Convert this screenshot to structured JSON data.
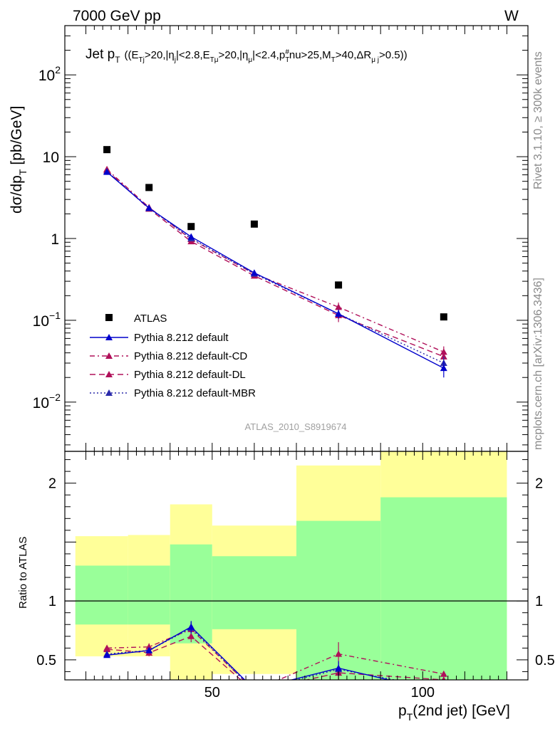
{
  "header": {
    "left": "7000 GeV pp",
    "right": "W"
  },
  "side_text": {
    "rivet": "Rivet 3.1.10, ≥ 300k events",
    "mcplots": "mcplots.cern.ch [arXiv:1306.3436]"
  },
  "analysis_id": "ATLAS_2010_S8919674",
  "chart_data": {
    "type": "line",
    "title": "Jet p_T ((E_Tj>20,|η_j|<2.8,E_Tμ>20,|η_μ|<2.4,p_T^#nu>25,M_T>40,ΔR_μj>0.5))",
    "title_parts": {
      "a": "Jet p",
      "b": "((E",
      "c": ">20,|η",
      "d": "|<2.8,E",
      "e": ">20,|η",
      "f": "|<2.4,p",
      "g": "nu>25,M",
      "h": ">40,ΔR",
      "i": ">0.5))"
    },
    "title_sub": {
      "T": "T",
      "Tj": "Tj",
      "j": "j",
      "Tmu": "Tμ",
      "mu": "μ",
      "hash": "#",
      "muj": "μ j"
    },
    "ylabel_main": "dσ/dp_T [pb/GeV]",
    "ylabel_parts": {
      "a": "dσ/dp",
      "b": "[pb/GeV]",
      "sub": "T"
    },
    "ylabel_ratio": "Ratio to ATLAS",
    "xlabel": "p_T(2nd jet) [GeV]",
    "xlabel_parts": {
      "a": "p",
      "sub": "T",
      "b": "(2nd jet) [GeV]"
    },
    "main_y_scale": "log",
    "main_ylim": [
      0.0025,
      400
    ],
    "main_yticks": [
      {
        "value": 100,
        "base": "10",
        "exp": "2"
      },
      {
        "value": 10,
        "base": "10",
        "exp": ""
      },
      {
        "value": 1,
        "base": "1",
        "exp": ""
      },
      {
        "value": 0.1,
        "base": "10",
        "exp": "−1"
      },
      {
        "value": 0.01,
        "base": "10",
        "exp": "−2"
      }
    ],
    "ratio_ylim": [
      0.33,
      2.27
    ],
    "ratio_yticks": [
      {
        "value": 0.5,
        "label": "0.5"
      },
      {
        "value": 1,
        "label": "1"
      },
      {
        "value": 2,
        "label": "2"
      }
    ],
    "xlim": [
      15,
      125
    ],
    "xticks": [
      {
        "value": 50,
        "label": "50"
      },
      {
        "value": 100,
        "label": "100"
      }
    ],
    "data": {
      "name": "ATLAS",
      "x": [
        25,
        35,
        45,
        60,
        80,
        105
      ],
      "y": [
        12.2,
        4.2,
        1.4,
        1.5,
        0.27,
        0.11
      ]
    },
    "bins": [
      {
        "lo": 17.5,
        "hi": 30,
        "inner_lo": 0.8,
        "inner_hi": 1.3,
        "outer_lo": 0.53,
        "outer_hi": 1.55
      },
      {
        "lo": 30,
        "hi": 40,
        "inner_lo": 0.8,
        "inner_hi": 1.3,
        "outer_lo": 0.53,
        "outer_hi": 1.56
      },
      {
        "lo": 40,
        "hi": 50,
        "inner_lo": 0.64,
        "inner_hi": 1.48,
        "outer_lo": 0.33,
        "outer_hi": 1.82
      },
      {
        "lo": 50,
        "hi": 70,
        "inner_lo": 0.76,
        "inner_hi": 1.38,
        "outer_lo": 0.38,
        "outer_hi": 1.64
      },
      {
        "lo": 70,
        "hi": 90,
        "inner_lo": 0.33,
        "inner_hi": 1.68,
        "outer_lo": 0.33,
        "outer_hi": 2.15
      },
      {
        "lo": 90,
        "hi": 120,
        "inner_lo": 0.33,
        "inner_hi": 1.88,
        "outer_lo": 0.33,
        "outer_hi": 2.27
      }
    ],
    "series": [
      {
        "name": "Pythia 8.212 default",
        "color": "#0000cc",
        "dash": "",
        "x": [
          25,
          35,
          45,
          60,
          80,
          105
        ],
        "y": [
          6.5,
          2.35,
          1.05,
          0.38,
          0.12,
          0.026
        ],
        "yerr": [
          0.2,
          0.1,
          0.05,
          0.02,
          0.015,
          0.006
        ],
        "ratio": [
          0.54,
          0.58,
          0.78,
          0.25,
          0.43,
          0.22
        ],
        "ratio_err": [
          0.015,
          0.02,
          0.05,
          0.0,
          0.06,
          0.0
        ]
      },
      {
        "name": "Pythia 8.212 default-CD",
        "color": "#b0105a",
        "dash": "7,4,2,4",
        "x": [
          25,
          35,
          45,
          60,
          80,
          105
        ],
        "y": [
          7.0,
          2.4,
          0.98,
          0.37,
          0.145,
          0.041
        ],
        "yerr": [
          0.2,
          0.1,
          0.05,
          0.02,
          0.02,
          0.007
        ],
        "ratio": [
          0.6,
          0.61,
          0.76,
          0.24,
          0.55,
          0.38
        ],
        "ratio_err": [
          0.02,
          0.03,
          0.05,
          0.0,
          0.1,
          0.0
        ]
      },
      {
        "name": "Pythia 8.212 default-DL",
        "color": "#b0105a",
        "dash": "8,5",
        "x": [
          25,
          35,
          45,
          60,
          80,
          105
        ],
        "y": [
          6.8,
          2.3,
          0.92,
          0.35,
          0.115,
          0.036
        ],
        "yerr": [
          0.2,
          0.1,
          0.05,
          0.02,
          0.02,
          0.006
        ],
        "ratio": [
          0.59,
          0.56,
          0.7,
          0.23,
          0.39,
          0.33
        ],
        "ratio_err": [
          0.02,
          0.03,
          0.05,
          0.0,
          0.06,
          0.0
        ]
      },
      {
        "name": "Pythia 8.212 default-MBR",
        "color": "#2a2aaa",
        "dash": "2,3",
        "x": [
          25,
          35,
          45,
          60,
          80,
          105
        ],
        "y": [
          6.6,
          2.35,
          1.0,
          0.37,
          0.12,
          0.03
        ],
        "yerr": [
          0.2,
          0.1,
          0.05,
          0.02,
          0.015,
          0.006
        ],
        "ratio": [
          0.55,
          0.58,
          0.77,
          0.24,
          0.42,
          0.25
        ],
        "ratio_err": [
          0.015,
          0.02,
          0.05,
          0.0,
          0.06,
          0.0
        ]
      }
    ],
    "band_colors": {
      "inner": "#99ff99",
      "outer": "#ffff99"
    },
    "legend_position": "lower-left",
    "grid": false
  }
}
